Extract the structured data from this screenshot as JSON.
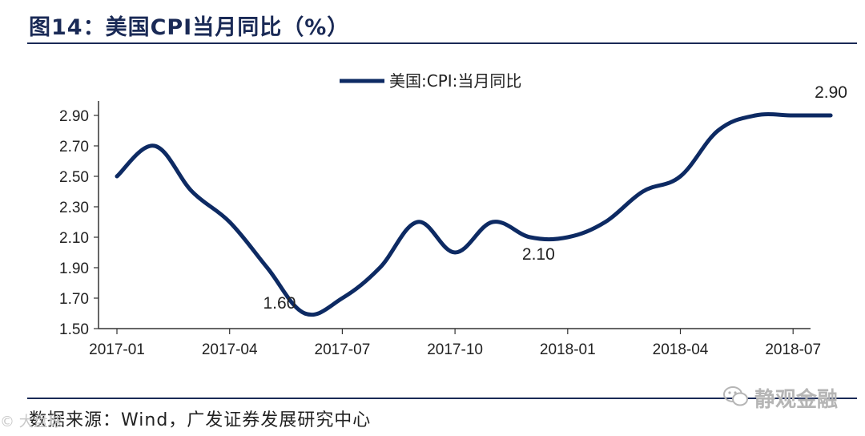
{
  "header": {
    "title": "图14：美国CPI当月同比（%）"
  },
  "footer": {
    "source": "数据来源：Wind，广发证券发展研究中心"
  },
  "watermark": {
    "text": "静观金融",
    "left_text": "© 大盘球",
    "icon": "wechat-icon"
  },
  "chart_data": {
    "type": "line",
    "title": "",
    "xlabel": "",
    "ylabel": "",
    "ylim": [
      1.5,
      3.0
    ],
    "yticks": [
      "1.50",
      "1.70",
      "1.90",
      "2.10",
      "2.30",
      "2.50",
      "2.70",
      "2.90"
    ],
    "ytick_values": [
      1.5,
      1.7,
      1.9,
      2.1,
      2.3,
      2.5,
      2.7,
      2.9
    ],
    "x": [
      "2017-01",
      "2017-02",
      "2017-03",
      "2017-04",
      "2017-05",
      "2017-06",
      "2017-07",
      "2017-08",
      "2017-09",
      "2017-10",
      "2017-11",
      "2017-12",
      "2018-01",
      "2018-02",
      "2018-03",
      "2018-04",
      "2018-05",
      "2018-06",
      "2018-07",
      "2018-08"
    ],
    "xticks": [
      "2017-01",
      "2017-04",
      "2017-07",
      "2017-10",
      "2018-01",
      "2018-04",
      "2018-07"
    ],
    "series": [
      {
        "name": "美国:CPI:当月同比",
        "values": [
          2.5,
          2.7,
          2.4,
          2.2,
          1.9,
          1.6,
          1.7,
          1.9,
          2.2,
          2.0,
          2.2,
          2.1,
          2.1,
          2.2,
          2.4,
          2.5,
          2.8,
          2.9,
          2.9,
          2.9
        ],
        "color": "#0d2a63"
      }
    ],
    "annotations": [
      {
        "text": "1.60",
        "x": "2017-06",
        "y": 1.6
      },
      {
        "text": "2.10",
        "x": "2017-12",
        "y": 2.1
      },
      {
        "text": "2.90",
        "x": "2018-08",
        "y": 2.9
      }
    ],
    "legend_position": "top-center",
    "grid": false
  }
}
